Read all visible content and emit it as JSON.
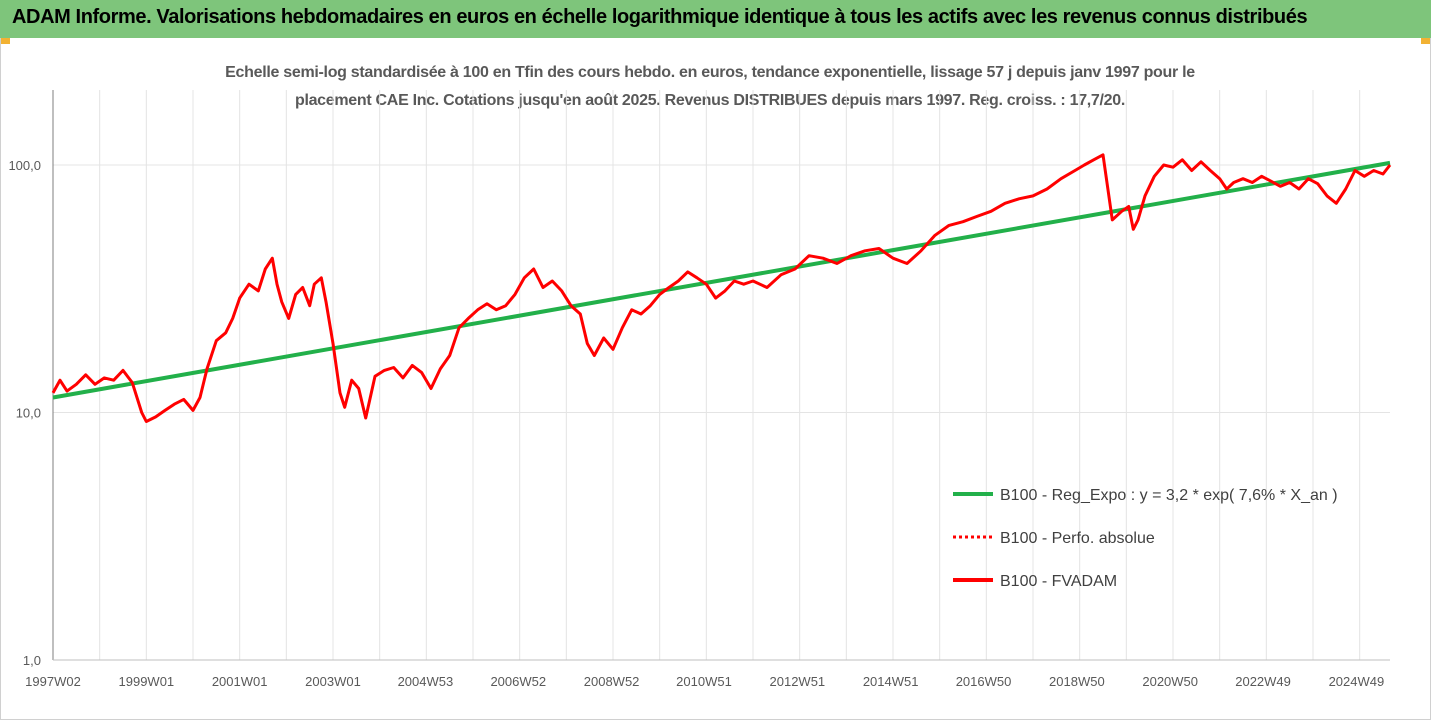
{
  "header": {
    "title": "ADAM Informe. Valorisations hebdomadaires en euros en échelle logarithmique identique à tous les actifs avec les revenus connus distribués"
  },
  "chart_data": {
    "type": "line",
    "title_line1": "Echelle semi-log standardisée à 100 en Tfin des cours hebdo. en euros, tendance exponentielle, lissage 57 j depuis janv 1997 pour le",
    "title_line2": "placement CAE Inc. Cotations jusqu'en août 2025. Revenus DISTRIBUES depuis mars 1997. Reg. croiss. : 17,7/20.",
    "y_scale": "log",
    "ylim": [
      1,
      200
    ],
    "y_ticks": [
      {
        "value": 1,
        "label": "1,0"
      },
      {
        "value": 10,
        "label": "10,0"
      },
      {
        "value": 100,
        "label": "100,0"
      }
    ],
    "x_range": [
      1997.0,
      2025.65
    ],
    "x_ticks": [
      {
        "value": 1997.0,
        "label": "1997W02"
      },
      {
        "value": 1999.0,
        "label": "1999W01"
      },
      {
        "value": 2001.0,
        "label": "2001W01"
      },
      {
        "value": 2003.0,
        "label": "2003W01"
      },
      {
        "value": 2004.98,
        "label": "2004W53"
      },
      {
        "value": 2006.97,
        "label": "2006W52"
      },
      {
        "value": 2008.97,
        "label": "2008W52"
      },
      {
        "value": 2010.95,
        "label": "2010W51"
      },
      {
        "value": 2012.95,
        "label": "2012W51"
      },
      {
        "value": 2014.95,
        "label": "2014W51"
      },
      {
        "value": 2016.94,
        "label": "2016W50"
      },
      {
        "value": 2018.94,
        "label": "2018W50"
      },
      {
        "value": 2020.94,
        "label": "2020W50"
      },
      {
        "value": 2022.93,
        "label": "2022W49"
      },
      {
        "value": 2024.93,
        "label": "2024W49"
      }
    ],
    "legend_position": "right",
    "grid": "vertical",
    "series": [
      {
        "name": "B100 - Reg_Expo : y = 3,2 * exp( 7,6% *  X_an )",
        "style": "solid",
        "color": "#22b04a",
        "x": [
          1997.0,
          2025.65
        ],
        "y": [
          11.5,
          102
        ]
      },
      {
        "name": "B100 - Perfo. absolue",
        "style": "dotted",
        "color": "#ff0000",
        "x": [],
        "y": []
      },
      {
        "name": "B100 - FVADAM",
        "style": "solid",
        "color": "#ff0000",
        "x": [
          1997.0,
          1997.15,
          1997.3,
          1997.5,
          1997.7,
          1997.9,
          1998.1,
          1998.3,
          1998.5,
          1998.7,
          1998.9,
          1999.0,
          1999.2,
          1999.4,
          1999.6,
          1999.8,
          2000.0,
          2000.15,
          2000.3,
          2000.5,
          2000.7,
          2000.85,
          2001.0,
          2001.2,
          2001.4,
          2001.55,
          2001.7,
          2001.8,
          2001.9,
          2002.05,
          2002.2,
          2002.35,
          2002.5,
          2002.6,
          2002.75,
          2002.85,
          2003.0,
          2003.15,
          2003.25,
          2003.4,
          2003.55,
          2003.7,
          2003.9,
          2004.1,
          2004.3,
          2004.5,
          2004.7,
          2004.9,
          2005.1,
          2005.3,
          2005.5,
          2005.7,
          2005.9,
          2006.1,
          2006.3,
          2006.5,
          2006.7,
          2006.9,
          2007.1,
          2007.3,
          2007.5,
          2007.7,
          2007.9,
          2008.1,
          2008.3,
          2008.45,
          2008.6,
          2008.8,
          2009.0,
          2009.2,
          2009.4,
          2009.6,
          2009.8,
          2010.0,
          2010.2,
          2010.4,
          2010.6,
          2010.8,
          2011.0,
          2011.2,
          2011.4,
          2011.6,
          2011.8,
          2012.0,
          2012.3,
          2012.6,
          2012.9,
          2013.2,
          2013.5,
          2013.8,
          2014.1,
          2014.4,
          2014.7,
          2015.0,
          2015.3,
          2015.6,
          2015.9,
          2016.2,
          2016.5,
          2016.8,
          2017.1,
          2017.4,
          2017.7,
          2018.0,
          2018.3,
          2018.6,
          2018.9,
          2019.1,
          2019.3,
          2019.5,
          2019.7,
          2019.9,
          2020.05,
          2020.15,
          2020.25,
          2020.4,
          2020.6,
          2020.8,
          2021.0,
          2021.2,
          2021.4,
          2021.6,
          2021.8,
          2022.0,
          2022.15,
          2022.3,
          2022.5,
          2022.7,
          2022.9,
          2023.1,
          2023.3,
          2023.5,
          2023.7,
          2023.9,
          2024.1,
          2024.3,
          2024.5,
          2024.7,
          2024.9,
          2025.1,
          2025.3,
          2025.5,
          2025.65
        ],
        "y": [
          12,
          13.5,
          12.2,
          13,
          14.2,
          13,
          13.8,
          13.5,
          14.8,
          13.2,
          10,
          9.2,
          9.6,
          10.2,
          10.8,
          11.3,
          10.2,
          11.5,
          15,
          19.5,
          21,
          24,
          29,
          33,
          31,
          38,
          42,
          33,
          28,
          24,
          30,
          32,
          27,
          33,
          35,
          28,
          19,
          12,
          10.5,
          13.5,
          12.5,
          9.5,
          14,
          14.8,
          15.2,
          13.8,
          15.5,
          14.5,
          12.5,
          15,
          17,
          22,
          24,
          26,
          27.5,
          26,
          27,
          30,
          35,
          38,
          32,
          34,
          31,
          27,
          25,
          19,
          17,
          20,
          18,
          22,
          26,
          25,
          27,
          30,
          32,
          34,
          37,
          35,
          33,
          29,
          31,
          34,
          33,
          34,
          32,
          36,
          38,
          43,
          42,
          40,
          43,
          45,
          46,
          42,
          40,
          45,
          52,
          57,
          59,
          62,
          65,
          70,
          73,
          75,
          80,
          88,
          95,
          100,
          105,
          110,
          60,
          65,
          68,
          55,
          60,
          75,
          90,
          100,
          98,
          105,
          95,
          103,
          95,
          88,
          80,
          85,
          88,
          85,
          90,
          86,
          82,
          85,
          80,
          88,
          84,
          75,
          70,
          80,
          95,
          90,
          95,
          92,
          100
        ]
      }
    ]
  }
}
